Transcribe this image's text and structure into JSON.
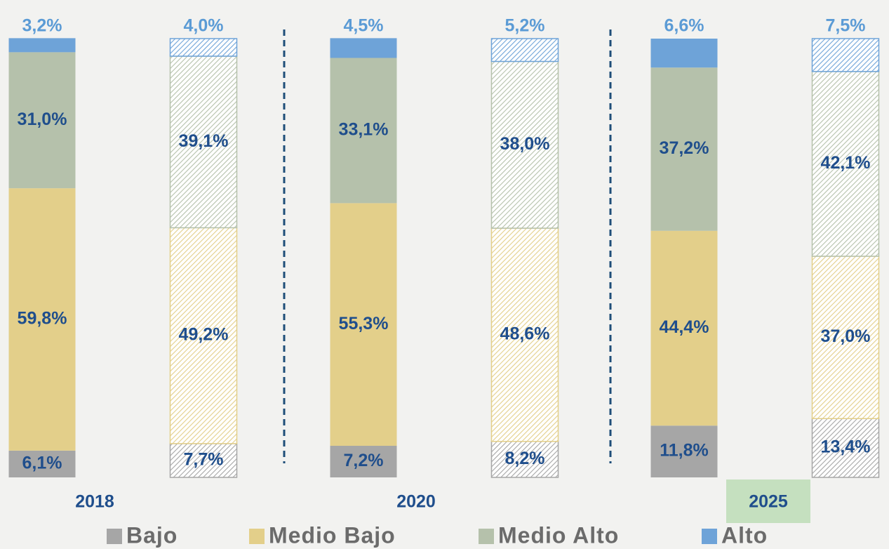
{
  "chart_data": {
    "type": "stacked_bar",
    "categories": [
      "2018",
      null,
      "2020",
      null,
      "2025",
      null
    ],
    "hatched": [
      false,
      true,
      false,
      true,
      false,
      true
    ],
    "ylim": [
      0,
      100
    ],
    "series": [
      {
        "name": "Bajo",
        "color": "#a6a6a6",
        "values": [
          6.1,
          7.7,
          7.2,
          8.2,
          11.8,
          13.4
        ],
        "value_labels": [
          "6,1%",
          "7,7%",
          "7,2%",
          "8,2%",
          "11,8%",
          "13,4%"
        ]
      },
      {
        "name": "Medio Bajo",
        "color": "#e3cf8a",
        "values": [
          59.8,
          49.2,
          55.3,
          48.6,
          44.4,
          37.0
        ],
        "value_labels": [
          "59,8%",
          "49,2%",
          "55,3%",
          "48,6%",
          "44,4%",
          "37,0%"
        ]
      },
      {
        "name": "Medio Alto",
        "color": "#b5c1ab",
        "values": [
          31.0,
          39.1,
          33.1,
          38.0,
          37.2,
          42.1
        ],
        "value_labels": [
          "31,0%",
          "39,1%",
          "33,1%",
          "38,0%",
          "37,2%",
          "42,1%"
        ]
      },
      {
        "name": "Alto",
        "color": "#6ea3d8",
        "values": [
          3.2,
          4.0,
          4.5,
          5.2,
          6.6,
          7.5
        ],
        "value_labels": [
          "3,2%",
          "4,0%",
          "4,5%",
          "5,2%",
          "6,6%",
          "7,5%"
        ]
      }
    ]
  }
}
